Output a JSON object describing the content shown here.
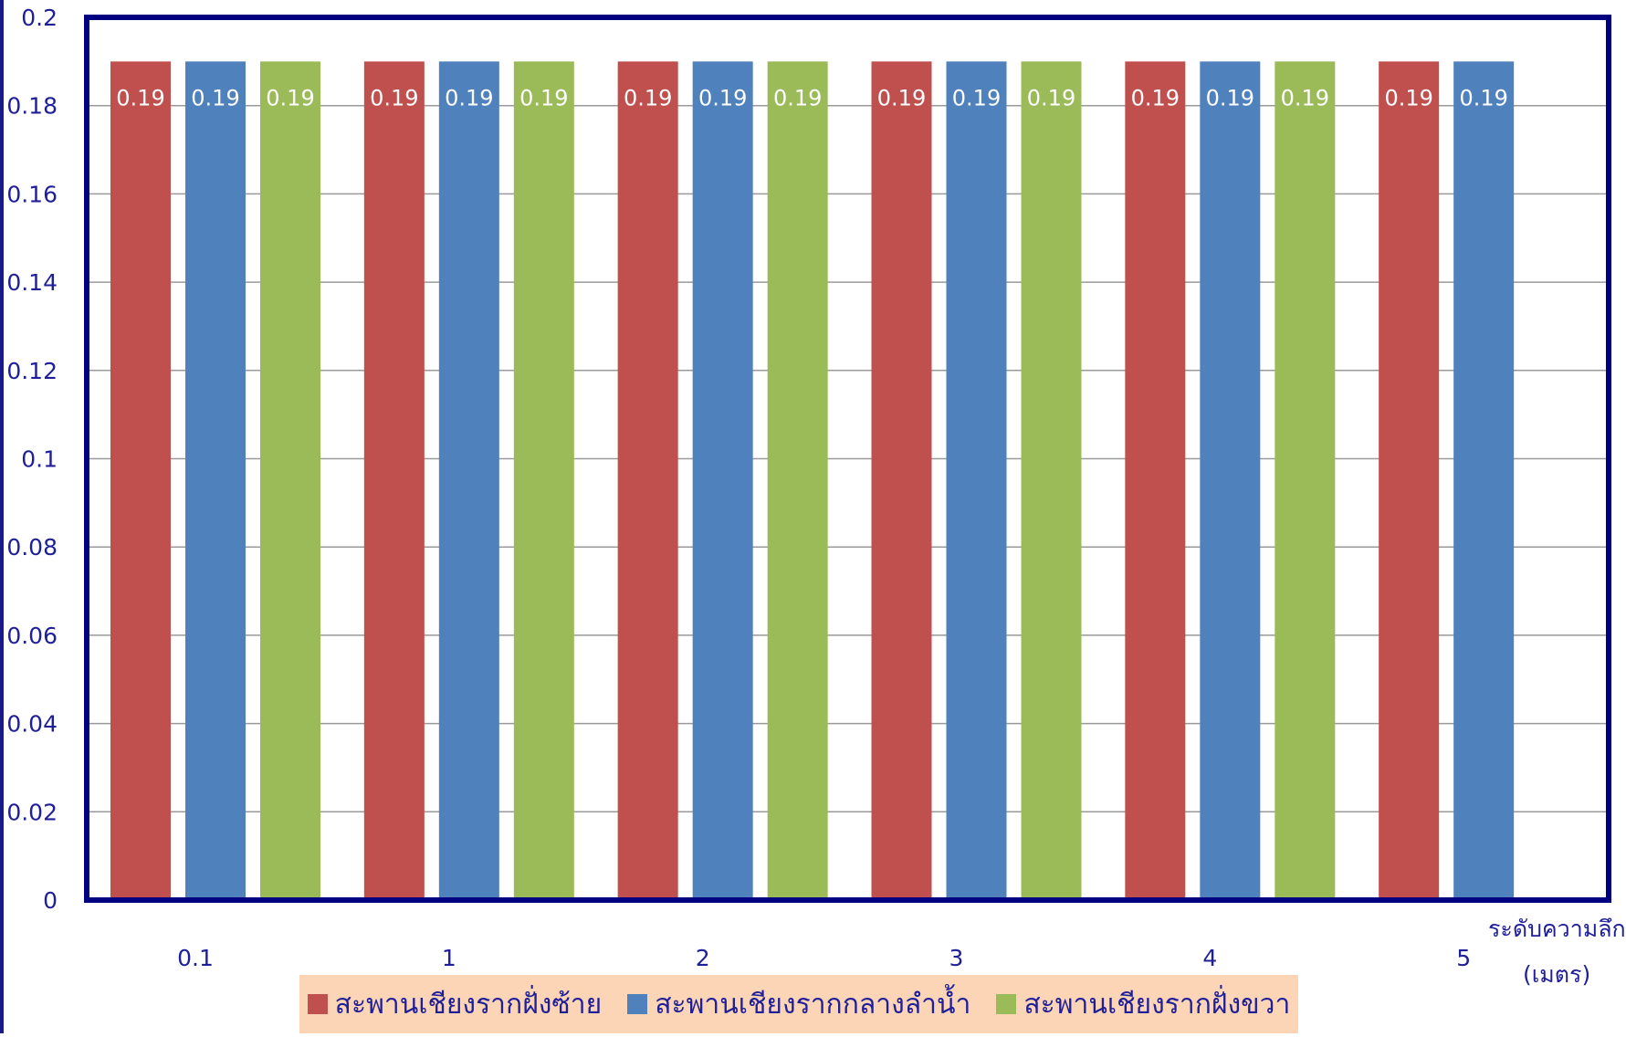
{
  "chart_data": {
    "type": "bar",
    "title": "",
    "xlabel": "ระดับความลึก",
    "xlabel_unit": "(เมตร)",
    "ylabel": "",
    "ylim": [
      0,
      0.2
    ],
    "yticks": [
      "0",
      "0.02",
      "0.04",
      "0.06",
      "0.08",
      "0.1",
      "0.12",
      "0.14",
      "0.16",
      "0.18",
      "0.2"
    ],
    "grid": true,
    "legend_position": "bottom",
    "categories": [
      "0.1",
      "1",
      "2",
      "3",
      "4",
      "5"
    ],
    "series": [
      {
        "name": "สะพานเชียงรากฝั่งซ้าย",
        "color": "#c0504d",
        "values": [
          0.19,
          0.19,
          0.19,
          0.19,
          0.19,
          0.19
        ]
      },
      {
        "name": "สะพานเชียงรากกลางลำน้ำ",
        "color": "#4f81bd",
        "values": [
          0.19,
          0.19,
          0.19,
          0.19,
          0.19,
          0.19
        ]
      },
      {
        "name": "สะพานเชียงรากฝั่งขวา",
        "color": "#9bbb59",
        "values": [
          0.19,
          0.19,
          0.19,
          0.19,
          0.19,
          null
        ]
      }
    ],
    "colors": {
      "frame": "#000080",
      "axis_text": "#1f1f9a",
      "grid": "#9a9a9a",
      "legend_bg": "#fbd5b5",
      "data_label": "#ffffff"
    }
  }
}
